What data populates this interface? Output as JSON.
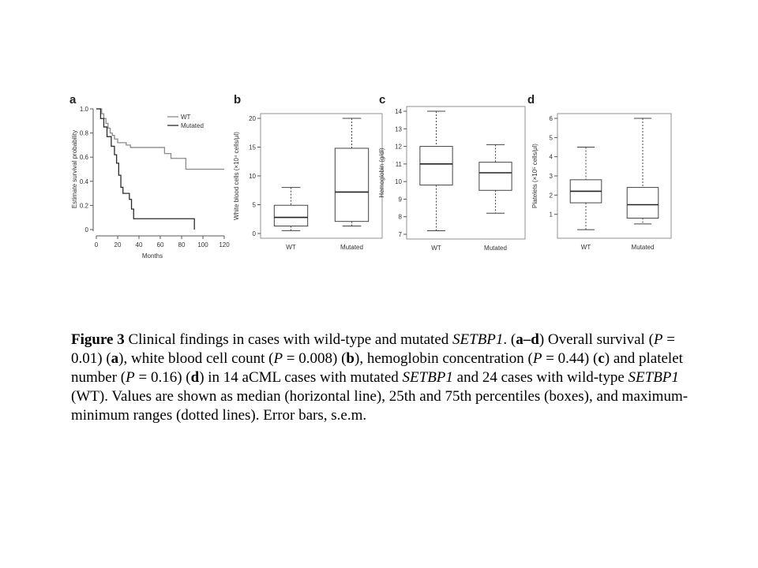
{
  "chart_data": [
    {
      "type": "line",
      "panel": "a",
      "xlabel": "Months",
      "ylabel": "Estimate survival probability",
      "xlim": [
        0,
        120
      ],
      "ylim": [
        0,
        1.0
      ],
      "xticks": [
        "0",
        "20",
        "40",
        "60",
        "80",
        "100",
        "120"
      ],
      "yticks": [
        "0",
        "0.2",
        "0.4",
        "0.6",
        "0.8",
        "1.0"
      ],
      "legend": "top-right",
      "series": [
        {
          "name": "WT",
          "color": "#8a8a8a",
          "x": [
            0,
            5,
            7,
            9,
            11,
            13,
            15,
            17,
            20,
            24,
            28,
            32,
            40,
            60,
            64,
            70,
            80,
            84,
            120
          ],
          "y": [
            1.0,
            0.96,
            0.92,
            0.88,
            0.84,
            0.8,
            0.78,
            0.75,
            0.72,
            0.72,
            0.7,
            0.68,
            0.68,
            0.68,
            0.63,
            0.59,
            0.59,
            0.5,
            0.5
          ]
        },
        {
          "name": "Mutated",
          "color": "#2b2b2b",
          "x": [
            0,
            4,
            7,
            10,
            14,
            17,
            19,
            21,
            23,
            25,
            27,
            31,
            33,
            35,
            37,
            60,
            92,
            92
          ],
          "y": [
            1.0,
            0.92,
            0.85,
            0.77,
            0.69,
            0.62,
            0.55,
            0.45,
            0.35,
            0.3,
            0.3,
            0.25,
            0.17,
            0.09,
            0.09,
            0.09,
            0.09,
            0.0
          ]
        }
      ]
    },
    {
      "type": "box",
      "panel": "b",
      "ylabel": "White blood cells (×10⁴ cells/μl)",
      "ylim": [
        0,
        20
      ],
      "yticks": [
        "0",
        "5",
        "10",
        "15",
        "20"
      ],
      "categories": [
        "WT",
        "Mutated"
      ],
      "boxes": [
        {
          "min": 0.5,
          "q1": 1.3,
          "median": 2.8,
          "q3": 4.9,
          "max": 8.0
        },
        {
          "min": 1.3,
          "q1": 2.1,
          "median": 7.2,
          "q3": 14.8,
          "max": 20.0
        }
      ]
    },
    {
      "type": "box",
      "panel": "c",
      "ylabel": "Hemoglobin (g/dl)",
      "ylim": [
        7,
        14
      ],
      "yticks": [
        "7",
        "8",
        "9",
        "10",
        "11",
        "12",
        "13",
        "14"
      ],
      "categories": [
        "WT",
        "Mutated"
      ],
      "boxes": [
        {
          "min": 7.2,
          "q1": 9.8,
          "median": 11.0,
          "q3": 12.0,
          "max": 14.0
        },
        {
          "min": 8.2,
          "q1": 9.5,
          "median": 10.5,
          "q3": 11.1,
          "max": 12.1
        }
      ]
    },
    {
      "type": "box",
      "panel": "d",
      "ylabel": "Platelets (×10⁵ cells/μl)",
      "ylim": [
        0,
        6
      ],
      "yticks": [
        "1",
        "2",
        "3",
        "4",
        "5",
        "6"
      ],
      "categories": [
        "WT",
        "Mutated"
      ],
      "boxes": [
        {
          "min": 0.2,
          "q1": 1.6,
          "median": 2.2,
          "q3": 2.8,
          "max": 4.5
        },
        {
          "min": 0.5,
          "q1": 0.8,
          "median": 1.5,
          "q3": 2.4,
          "max": 6.0
        }
      ]
    }
  ],
  "caption": {
    "label": "Figure 3",
    "t1": " Clinical findings in cases with wild-type and mutated ",
    "gene": "SETBP1",
    "t2": ". (",
    "ad": "a–d",
    "t3": ") Overall survival (",
    "p": "P",
    "p1": " = 0.01) (",
    "la": "a",
    "t4": "), white blood cell count (",
    "p2": " = 0.008) (",
    "lb": "b",
    "t5": "), hemoglobin concentration (",
    "p3": " = 0.44) (",
    "lc": "c",
    "t6": ") and platelet number (",
    "p4": " = 0.16) (",
    "ld": "d",
    "t7": ") in 14 aCML cases with mutated ",
    "t8": " and 24 cases with wild-type ",
    "t9": " (WT). Values are shown as median (horizontal line), 25th and 75th percentiles (boxes), and maximum-minimum ranges (dotted lines). Error bars, s.e.m."
  }
}
